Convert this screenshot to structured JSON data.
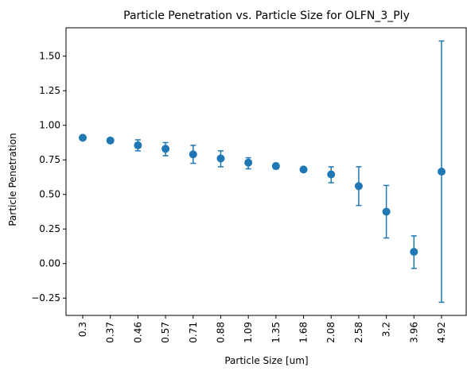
{
  "chart_data": {
    "type": "scatter",
    "title": "Particle Penetration vs. Particle Size for OLFN_3_Ply",
    "xlabel": "Particle Size [um]",
    "ylabel": "Particle Penetration",
    "categories": [
      "0.3",
      "0.37",
      "0.46",
      "0.57",
      "0.71",
      "0.88",
      "1.09",
      "1.35",
      "1.68",
      "2.08",
      "2.58",
      "3.2",
      "3.96",
      "4.92"
    ],
    "values": [
      0.91,
      0.89,
      0.855,
      0.83,
      0.79,
      0.76,
      0.73,
      0.705,
      0.68,
      0.645,
      0.56,
      0.375,
      0.085,
      0.665
    ],
    "error_low": [
      0.905,
      0.875,
      0.815,
      0.78,
      0.725,
      0.7,
      0.685,
      0.685,
      0.67,
      0.585,
      0.42,
      0.185,
      -0.035,
      -0.28
    ],
    "error_high": [
      0.92,
      0.9,
      0.895,
      0.875,
      0.855,
      0.815,
      0.765,
      0.725,
      0.69,
      0.7,
      0.7,
      0.565,
      0.2,
      1.61
    ],
    "yticks": [
      "−0.25",
      "0.00",
      "0.25",
      "0.50",
      "0.75",
      "1.00",
      "1.25",
      "1.50"
    ],
    "ytick_values": [
      -0.25,
      0,
      0.25,
      0.5,
      0.75,
      1.0,
      1.25,
      1.5
    ],
    "ylim": [
      -0.375,
      1.705
    ],
    "grid": false,
    "color": "#1f77b4"
  }
}
